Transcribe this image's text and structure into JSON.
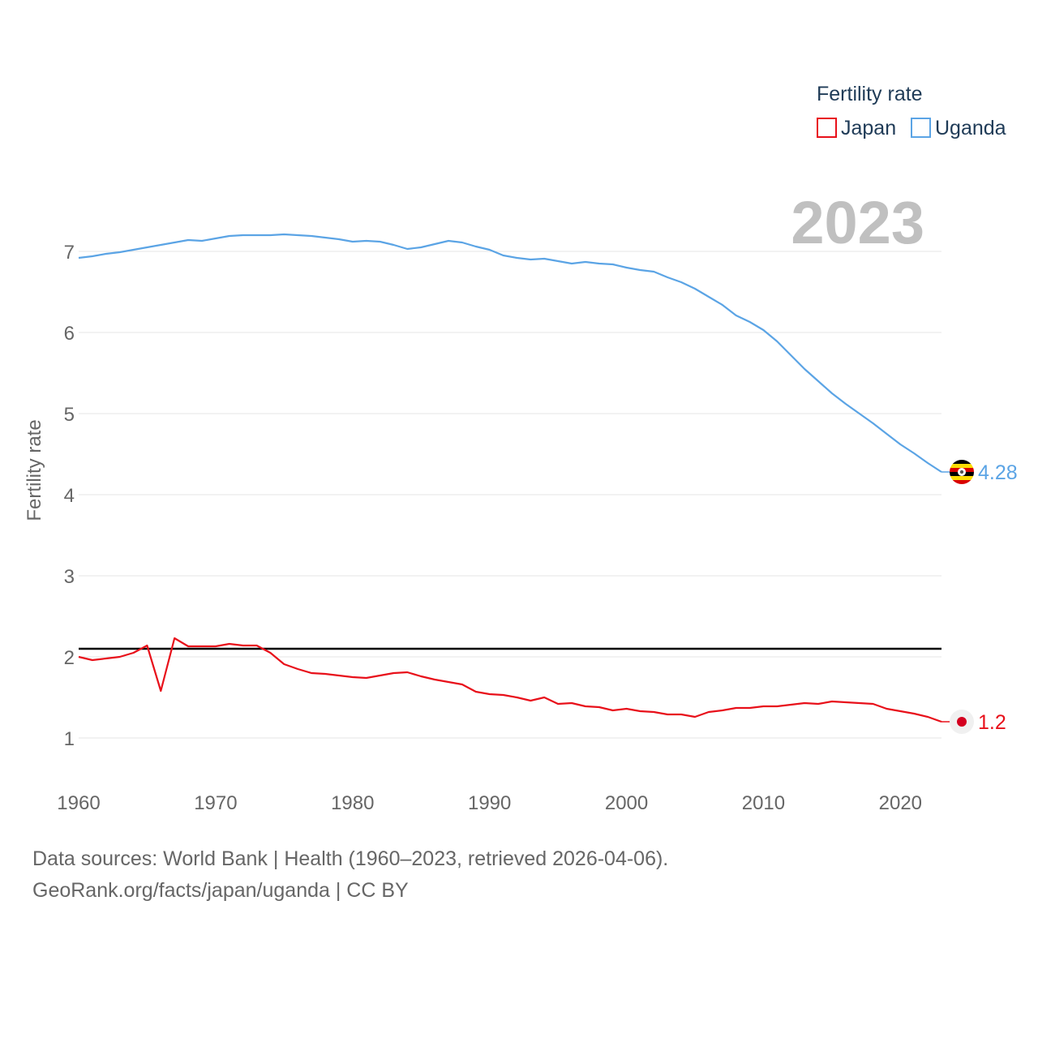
{
  "chart_data": {
    "type": "line",
    "title": "",
    "xlabel": "",
    "ylabel": "Fertility rate",
    "xlim": [
      1960,
      2023
    ],
    "ylim": [
      0.6,
      7.6
    ],
    "x_ticks": [
      "1960",
      "1970",
      "1980",
      "1990",
      "2000",
      "2010",
      "2020"
    ],
    "y_ticks": [
      "1",
      "2",
      "3",
      "4",
      "5",
      "6",
      "7"
    ],
    "current_year": "2023",
    "reference_line": 2.1,
    "legend": {
      "title": "Fertility rate",
      "position": "top-right"
    },
    "x": [
      1960,
      1961,
      1962,
      1963,
      1964,
      1965,
      1966,
      1967,
      1968,
      1969,
      1970,
      1971,
      1972,
      1973,
      1974,
      1975,
      1976,
      1977,
      1978,
      1979,
      1980,
      1981,
      1982,
      1983,
      1984,
      1985,
      1986,
      1987,
      1988,
      1989,
      1990,
      1991,
      1992,
      1993,
      1994,
      1995,
      1996,
      1997,
      1998,
      1999,
      2000,
      2001,
      2002,
      2003,
      2004,
      2005,
      2006,
      2007,
      2008,
      2009,
      2010,
      2011,
      2012,
      2013,
      2014,
      2015,
      2016,
      2017,
      2018,
      2019,
      2020,
      2021,
      2022,
      2023
    ],
    "series": [
      {
        "name": "Japan",
        "color": "#e8101a",
        "end_label": "1.2",
        "values": [
          2.0,
          1.96,
          1.98,
          2.0,
          2.05,
          2.14,
          1.58,
          2.23,
          2.13,
          2.13,
          2.13,
          2.16,
          2.14,
          2.14,
          2.05,
          1.91,
          1.85,
          1.8,
          1.79,
          1.77,
          1.75,
          1.74,
          1.77,
          1.8,
          1.81,
          1.76,
          1.72,
          1.69,
          1.66,
          1.57,
          1.54,
          1.53,
          1.5,
          1.46,
          1.5,
          1.42,
          1.43,
          1.39,
          1.38,
          1.34,
          1.36,
          1.33,
          1.32,
          1.29,
          1.29,
          1.26,
          1.32,
          1.34,
          1.37,
          1.37,
          1.39,
          1.39,
          1.41,
          1.43,
          1.42,
          1.45,
          1.44,
          1.43,
          1.42,
          1.36,
          1.33,
          1.3,
          1.26,
          1.2
        ]
      },
      {
        "name": "Uganda",
        "color": "#5ba4e5",
        "end_label": "4.28",
        "values": [
          6.92,
          6.94,
          6.97,
          6.99,
          7.02,
          7.05,
          7.08,
          7.11,
          7.14,
          7.13,
          7.16,
          7.19,
          7.2,
          7.2,
          7.2,
          7.21,
          7.2,
          7.19,
          7.17,
          7.15,
          7.12,
          7.13,
          7.12,
          7.08,
          7.03,
          7.05,
          7.09,
          7.13,
          7.11,
          7.06,
          7.02,
          6.95,
          6.92,
          6.9,
          6.91,
          6.88,
          6.85,
          6.87,
          6.85,
          6.84,
          6.8,
          6.77,
          6.75,
          6.68,
          6.62,
          6.54,
          6.44,
          6.34,
          6.21,
          6.13,
          6.03,
          5.89,
          5.72,
          5.55,
          5.4,
          5.25,
          5.12,
          5.0,
          4.88,
          4.75,
          4.62,
          4.51,
          4.39,
          4.28
        ]
      }
    ]
  },
  "footer": {
    "line1": "Data sources: World Bank | Health (1960–2023, retrieved 2026-04-06).",
    "line2": "GeoRank.org/facts/japan/uganda | CC BY"
  }
}
